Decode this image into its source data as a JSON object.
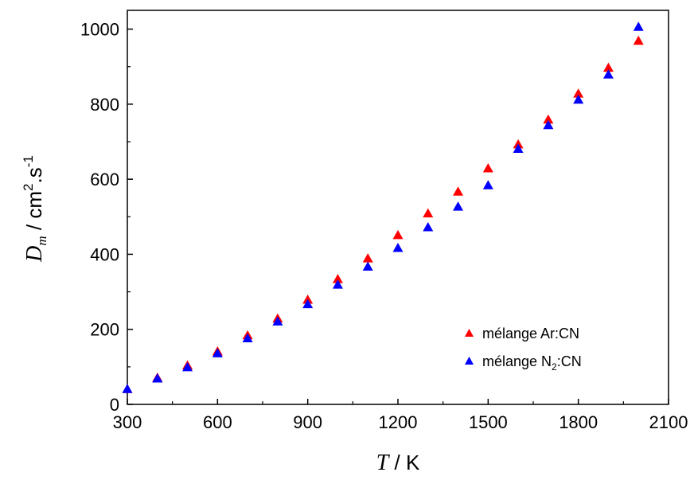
{
  "chart_data": {
    "type": "scatter",
    "title": "",
    "xlabel": {
      "symbol": "T",
      "unit": " / K"
    },
    "ylabel": {
      "symbol": "D",
      "subscript": "m",
      "unit_prefix": "  / cm",
      "unit_sup1": "2",
      "unit_mid": ".s",
      "unit_sup2": "-1"
    },
    "xlim": [
      300,
      2100
    ],
    "ylim": [
      0,
      1050
    ],
    "xticks": [
      300,
      600,
      900,
      1200,
      1500,
      1800,
      2100
    ],
    "yticks": [
      0,
      200,
      400,
      600,
      800,
      1000
    ],
    "x": [
      300,
      400,
      500,
      600,
      700,
      800,
      900,
      1000,
      1100,
      1200,
      1300,
      1400,
      1500,
      1600,
      1700,
      1800,
      1900,
      2000
    ],
    "series": [
      {
        "name": "mélange Ar:CN",
        "legend_parts": [
          "mélange Ar:CN"
        ],
        "color": "#ff0000",
        "marker": "triangle",
        "values": [
          42,
          72,
          105,
          142,
          185,
          230,
          280,
          335,
          390,
          452,
          510,
          568,
          630,
          694,
          760,
          829,
          898,
          970
        ]
      },
      {
        "name": "mélange N2:CN",
        "legend_parts": [
          "mélange N",
          "2",
          ":CN"
        ],
        "color": "#0000ff",
        "marker": "triangle",
        "values": [
          42,
          70,
          100,
          137,
          177,
          222,
          268,
          320,
          368,
          418,
          473,
          528,
          585,
          682,
          745,
          813,
          880,
          1007
        ]
      }
    ],
    "legend_position": "bottom-right",
    "grid": false
  }
}
